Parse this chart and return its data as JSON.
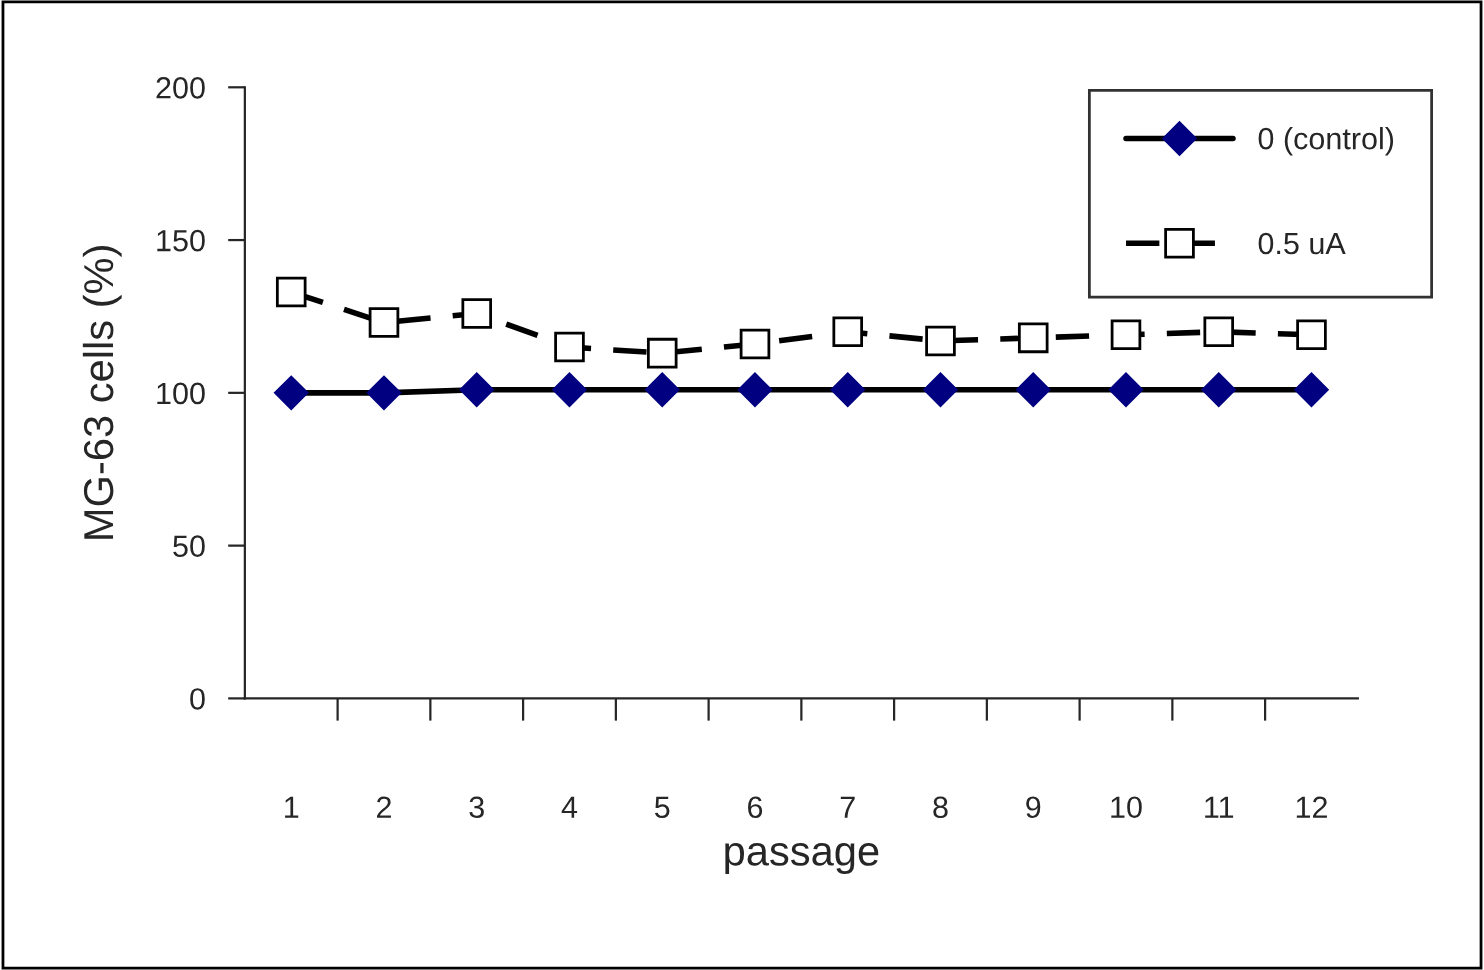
{
  "chart_data": {
    "type": "line",
    "xlabel": "passage",
    "ylabel": "MG-63 cells (%)",
    "categories": [
      "1",
      "2",
      "3",
      "4",
      "5",
      "6",
      "7",
      "8",
      "9",
      "10",
      "11",
      "12"
    ],
    "series": [
      {
        "name": "0 (control)",
        "color": "#000080",
        "values": [
          100,
          100,
          101,
          101,
          101,
          101,
          101,
          101,
          101,
          101,
          101,
          101
        ],
        "marker": "diamond",
        "line_style": "solid"
      },
      {
        "name": "0.5 uA",
        "color": "#000000",
        "values": [
          133,
          123,
          126,
          115,
          113,
          116,
          120,
          117,
          118,
          119,
          120,
          119
        ],
        "marker": "square",
        "line_style": "dashed"
      }
    ],
    "ylim": [
      0,
      200
    ],
    "yticks": [
      0,
      50,
      100,
      150,
      200
    ],
    "grid": false,
    "legend": "top right"
  }
}
